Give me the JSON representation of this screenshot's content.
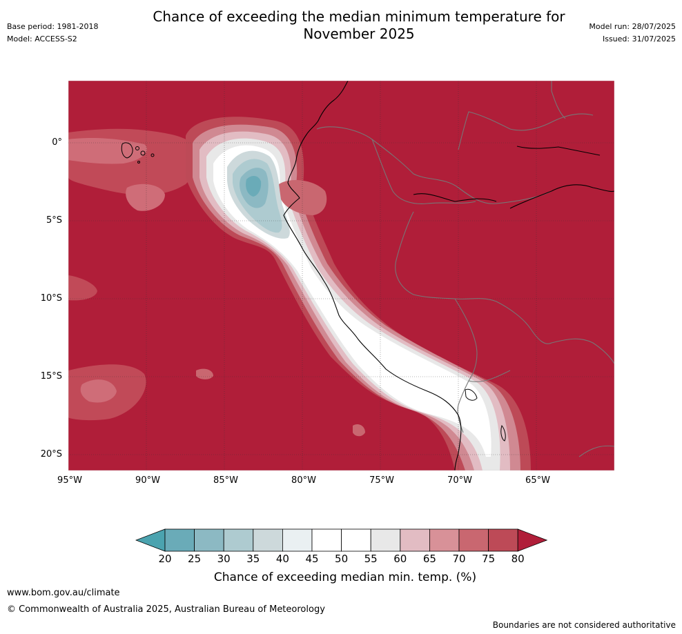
{
  "title_line1": "Chance of exceeding the median minimum temperature for",
  "title_line2": "November 2025",
  "meta_left": {
    "base_period": "Base period: 1981-2018",
    "model": "Model: ACCESS-S2"
  },
  "meta_right": {
    "model_run": "Model run: 28/07/2025",
    "issued": "Issued: 31/07/2025"
  },
  "lat_labels": [
    "0°",
    "5°S",
    "10°S",
    "15°S",
    "20°S"
  ],
  "lon_labels": [
    "95°W",
    "90°W",
    "85°W",
    "80°W",
    "75°W",
    "70°W",
    "65°W"
  ],
  "colorbar": {
    "ticks": [
      "20",
      "25",
      "30",
      "35",
      "40",
      "45",
      "50",
      "55",
      "60",
      "65",
      "70",
      "75",
      "80"
    ],
    "label": "Chance of exceeding median min. temp. (%)",
    "colors": [
      "#4ba3af",
      "#6aabb8",
      "#8cb9c3",
      "#aecbd0",
      "#cdd9db",
      "#eaf0f2",
      "#ffffff",
      "#ffffff",
      "#e8e8e8",
      "#e2bcc3",
      "#d89198",
      "#c96770",
      "#bd4a57",
      "#b01e39"
    ]
  },
  "footer": {
    "url": "www.bom.gov.au/climate",
    "copyright": "© Commonwealth of Australia 2025, Australian Bureau of Meteorology",
    "note": "Boundaries are not considered authoritative"
  }
}
